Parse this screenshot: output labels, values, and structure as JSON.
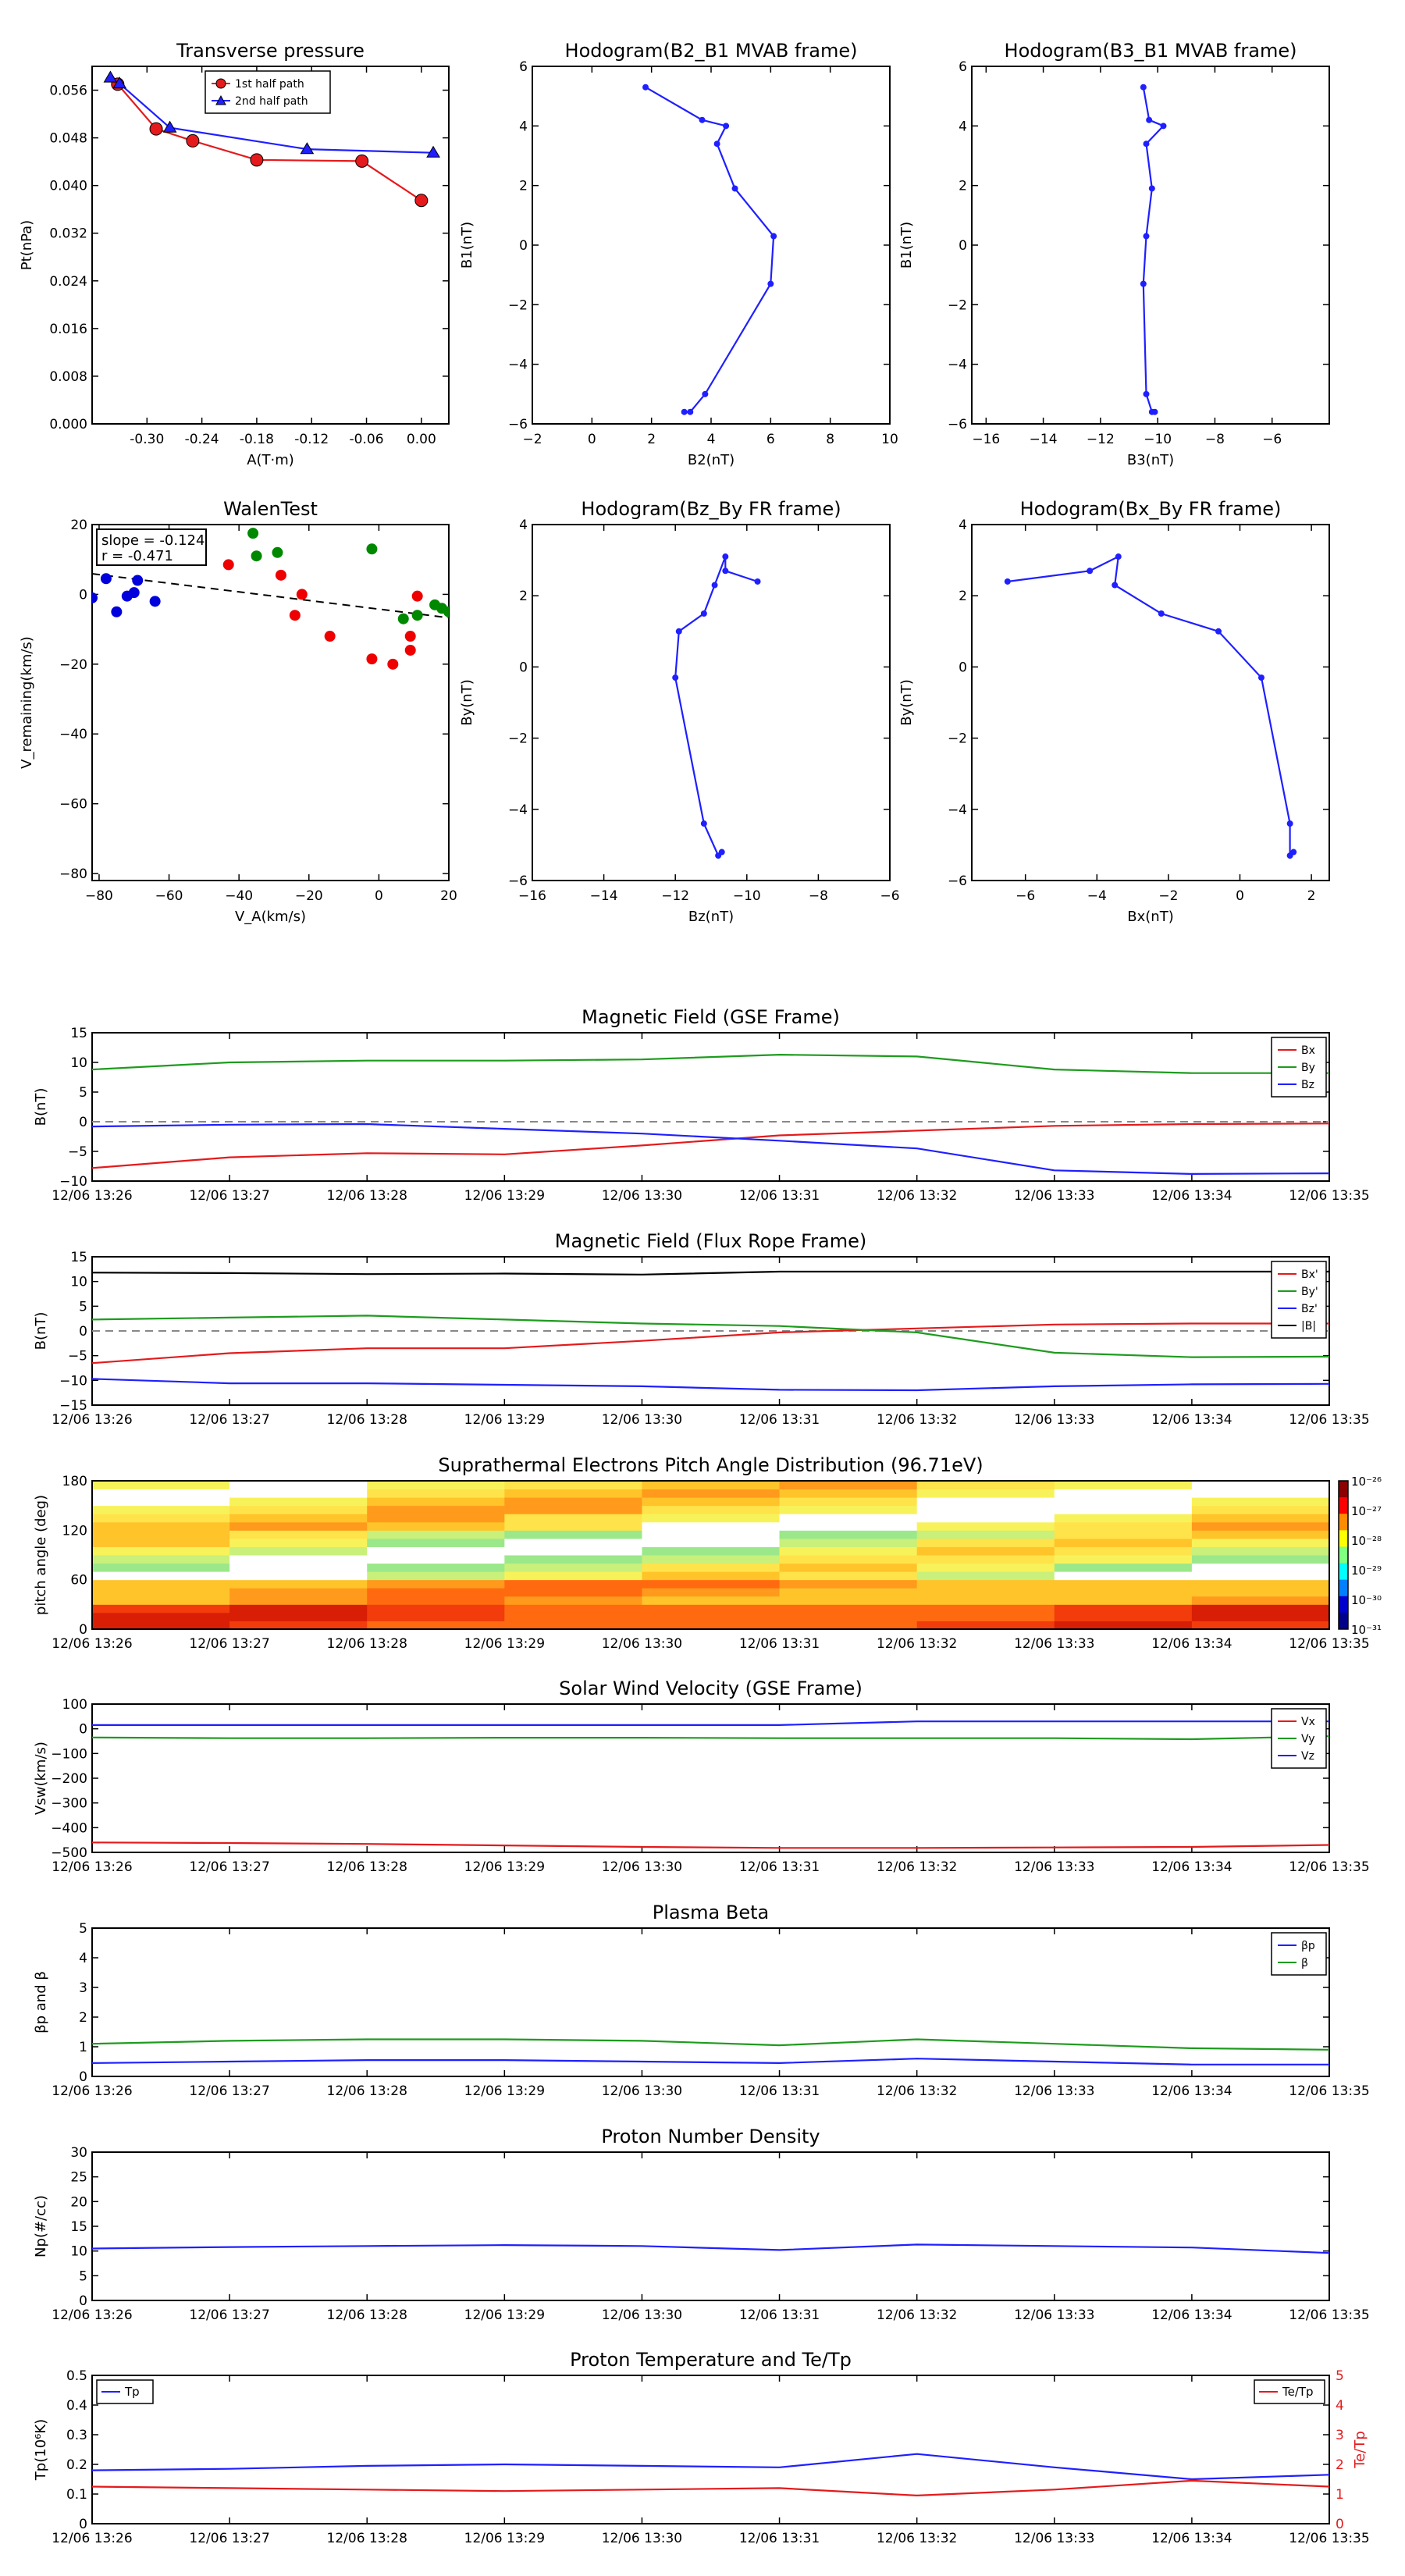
{
  "chart_data": [
    {
      "type": "line",
      "title": "Transverse pressure",
      "xlabel": "A(T·m)",
      "ylabel": "Pt(nPa)",
      "xlim": [
        -0.36,
        0.03
      ],
      "ylim": [
        0,
        0.06
      ],
      "xticks": [
        "-0.30",
        "-0.24",
        "-0.18",
        "-0.12",
        "-0.06",
        "0.00"
      ],
      "yticks": [
        "0.000",
        "0.008",
        "0.016",
        "0.024",
        "0.032",
        "0.040",
        "0.048",
        "0.056"
      ],
      "legend": "top-center",
      "series": [
        {
          "name": "1st half path",
          "color": "#e41a1c",
          "marker": "circle",
          "x": [
            -0.332,
            -0.29,
            -0.25,
            -0.18,
            -0.065,
            0.0
          ],
          "y": [
            0.057,
            0.0495,
            0.0475,
            0.0443,
            0.0441,
            0.0375
          ]
        },
        {
          "name": "2nd half path",
          "color": "#1f1fff",
          "marker": "triangle",
          "x": [
            -0.34,
            -0.33,
            -0.275,
            -0.125,
            0.013
          ],
          "y": [
            0.0581,
            0.0571,
            0.0497,
            0.0461,
            0.0455
          ]
        }
      ]
    },
    {
      "type": "line",
      "title": "Hodogram(B2_B1 MVAB frame)",
      "xlabel": "B2(nT)",
      "ylabel": "B1(nT)",
      "xlim": [
        -2,
        10
      ],
      "ylim": [
        -6,
        6
      ],
      "xticks": [
        "−2",
        "0",
        "2",
        "4",
        "6",
        "8",
        "10"
      ],
      "yticks": [
        "−6",
        "−4",
        "−2",
        "0",
        "2",
        "4",
        "6"
      ],
      "series": [
        {
          "color": "#1f1fff",
          "x": [
            1.8,
            3.7,
            4.5,
            4.2,
            4.8,
            6.1,
            6.0,
            3.8,
            3.3,
            3.1
          ],
          "y": [
            5.3,
            4.2,
            4.0,
            3.4,
            1.9,
            0.3,
            -1.3,
            -5.0,
            -5.6,
            -5.6
          ]
        }
      ]
    },
    {
      "type": "line",
      "title": "Hodogram(B3_B1 MVAB frame)",
      "xlabel": "B3(nT)",
      "ylabel": "B1(nT)",
      "xlim": [
        -16.5,
        -4
      ],
      "ylim": [
        -6,
        6
      ],
      "xticks": [
        "−16",
        "−14",
        "−12",
        "−10",
        "−8",
        "−6"
      ],
      "yticks": [
        "−6",
        "−4",
        "−2",
        "0",
        "2",
        "4",
        "6"
      ],
      "series": [
        {
          "color": "#1f1fff",
          "x": [
            -10.5,
            -10.3,
            -9.8,
            -10.4,
            -10.2,
            -10.4,
            -10.5,
            -10.4,
            -10.2,
            -10.1
          ],
          "y": [
            5.3,
            4.2,
            4.0,
            3.4,
            1.9,
            0.3,
            -1.3,
            -5.0,
            -5.6,
            -5.6
          ]
        }
      ]
    },
    {
      "type": "scatter",
      "title": "WalenTest",
      "xlabel": "V_A(km/s)",
      "ylabel": "V_remaining(km/s)",
      "xlim": [
        -82,
        20
      ],
      "ylim": [
        -82,
        20
      ],
      "xticks": [
        "−80",
        "−60",
        "−40",
        "−20",
        "0",
        "20"
      ],
      "yticks": [
        "−80",
        "−60",
        "−40",
        "−20",
        "0",
        "20"
      ],
      "annotation": [
        "slope = -0.124",
        "r = -0.471"
      ],
      "fit_line": {
        "x": [
          -82,
          20
        ],
        "y": [
          5.9,
          -6.7
        ]
      },
      "series": [
        {
          "color": "#0000dd",
          "x": [
            -78,
            -75,
            -72,
            -70,
            -69,
            -64,
            -82
          ],
          "y": [
            4.5,
            -5,
            -0.5,
            0.5,
            4,
            -2,
            -1
          ]
        },
        {
          "color": "#ee0000",
          "x": [
            -43,
            -28,
            -24,
            -22,
            -14,
            -2,
            4,
            9,
            9,
            11
          ],
          "y": [
            8.5,
            5.5,
            -6,
            0,
            -12,
            -18.5,
            -20,
            -12,
            -16,
            -0.5
          ]
        },
        {
          "color": "#008800",
          "x": [
            -36,
            -35,
            -29,
            -2,
            7,
            11,
            16,
            18,
            20
          ],
          "y": [
            17.5,
            11,
            12,
            13,
            -7,
            -6,
            -3,
            -4,
            -5
          ]
        }
      ]
    },
    {
      "type": "line",
      "title": "Hodogram(Bz_By FR frame)",
      "xlabel": "Bz(nT)",
      "ylabel": "By(nT)",
      "xlim": [
        -16,
        -6
      ],
      "ylim": [
        -6,
        4
      ],
      "xticks": [
        "−16",
        "−14",
        "−12",
        "−10",
        "−8",
        "−6"
      ],
      "yticks": [
        "−6",
        "−4",
        "−2",
        "0",
        "2",
        "4"
      ],
      "series": [
        {
          "color": "#1f1fff",
          "x": [
            -9.7,
            -10.6,
            -10.6,
            -10.9,
            -11.2,
            -11.9,
            -12.0,
            -11.2,
            -10.8,
            -10.7
          ],
          "y": [
            2.4,
            2.7,
            3.1,
            2.3,
            1.5,
            1.0,
            -0.3,
            -4.4,
            -5.3,
            -5.2
          ]
        }
      ]
    },
    {
      "type": "line",
      "title": "Hodogram(Bx_By FR frame)",
      "xlabel": "Bx(nT)",
      "ylabel": "By(nT)",
      "xlim": [
        -7.5,
        2.5
      ],
      "ylim": [
        -6,
        4
      ],
      "xticks": [
        "−6",
        "−4",
        "−2",
        "0",
        "2"
      ],
      "yticks": [
        "−6",
        "−4",
        "−2",
        "0",
        "2",
        "4"
      ],
      "series": [
        {
          "color": "#1f1fff",
          "x": [
            -6.5,
            -4.2,
            -3.4,
            -3.5,
            -2.2,
            -0.6,
            0.6,
            1.4,
            1.4,
            1.5
          ],
          "y": [
            2.4,
            2.7,
            3.1,
            2.3,
            1.5,
            1.0,
            -0.3,
            -4.4,
            -5.3,
            -5.2
          ]
        }
      ]
    },
    {
      "type": "line",
      "title": "Magnetic Field (GSE Frame)",
      "ylabel": "B(nT)",
      "ylim": [
        -10,
        15
      ],
      "x": [
        "12/06 13:26",
        "12/06 13:27",
        "12/06 13:28",
        "12/06 13:29",
        "12/06 13:30",
        "12/06 13:31",
        "12/06 13:32",
        "12/06 13:33",
        "12/06 13:34",
        "12/06 13:35"
      ],
      "yticks": [
        "−10",
        "−5",
        "0",
        "5",
        "10",
        "15"
      ],
      "zero_line": true,
      "legend": "top-right",
      "series": [
        {
          "name": "Bx",
          "color": "#e41a1c",
          "values": [
            -7.8,
            -6.0,
            -5.3,
            -5.5,
            -4.0,
            -2.3,
            -1.5,
            -0.7,
            -0.4,
            -0.3
          ]
        },
        {
          "name": "By",
          "color": "#1e9b1e",
          "values": [
            8.8,
            10.0,
            10.3,
            10.3,
            10.5,
            11.3,
            11.0,
            8.8,
            8.2,
            8.2
          ]
        },
        {
          "name": "Bz",
          "color": "#1f1fff",
          "values": [
            -0.8,
            -0.5,
            -0.4,
            -1.2,
            -2.0,
            -3.2,
            -4.5,
            -8.2,
            -8.8,
            -8.7
          ]
        }
      ]
    },
    {
      "type": "line",
      "title": "Magnetic Field (Flux Rope Frame)",
      "ylabel": "B(nT)",
      "ylim": [
        -15,
        15
      ],
      "x": [
        "12/06 13:26",
        "12/06 13:27",
        "12/06 13:28",
        "12/06 13:29",
        "12/06 13:30",
        "12/06 13:31",
        "12/06 13:32",
        "12/06 13:33",
        "12/06 13:34",
        "12/06 13:35"
      ],
      "yticks": [
        "−15",
        "−10",
        "−5",
        "0",
        "5",
        "10",
        "15"
      ],
      "zero_line": true,
      "legend": "top-right",
      "series": [
        {
          "name": "Bx'",
          "color": "#e41a1c",
          "values": [
            -6.5,
            -4.5,
            -3.5,
            -3.5,
            -2.0,
            -0.3,
            0.5,
            1.3,
            1.5,
            1.5
          ]
        },
        {
          "name": "By'",
          "color": "#1e9b1e",
          "values": [
            2.3,
            2.7,
            3.1,
            2.3,
            1.5,
            1.0,
            -0.3,
            -4.4,
            -5.3,
            -5.2
          ]
        },
        {
          "name": "Bz'",
          "color": "#1f1fff",
          "values": [
            -9.7,
            -10.6,
            -10.6,
            -10.9,
            -11.2,
            -11.9,
            -12.0,
            -11.2,
            -10.8,
            -10.7
          ]
        },
        {
          "name": "|B|",
          "color": "#000000",
          "values": [
            11.8,
            11.7,
            11.5,
            11.6,
            11.4,
            12.0,
            12.0,
            12.0,
            12.0,
            12.0
          ]
        }
      ]
    },
    {
      "type": "heatmap",
      "title": "Suprathermal Electrons Pitch Angle Distribution (96.71eV)",
      "ylabel": "pitch angle (deg)",
      "ylim": [
        0,
        180
      ],
      "x": [
        "12/06 13:26",
        "12/06 13:27",
        "12/06 13:28",
        "12/06 13:29",
        "12/06 13:30",
        "12/06 13:31",
        "12/06 13:32",
        "12/06 13:33",
        "12/06 13:34",
        "12/06 13:35"
      ],
      "yticks": [
        "0",
        "60",
        "120",
        "180"
      ],
      "colorbar_ticks": [
        "10⁻²⁶",
        "10⁻²⁷",
        "10⁻²⁸",
        "10⁻²⁹",
        "10⁻³⁰",
        "10⁻³¹"
      ],
      "columns": 9,
      "rows": 18
    },
    {
      "type": "line",
      "title": "Solar Wind Velocity (GSE Frame)",
      "ylabel": "Vsw(km/s)",
      "ylim": [
        -500,
        100
      ],
      "x": [
        "12/06 13:26",
        "12/06 13:27",
        "12/06 13:28",
        "12/06 13:29",
        "12/06 13:30",
        "12/06 13:31",
        "12/06 13:32",
        "12/06 13:33",
        "12/06 13:34",
        "12/06 13:35"
      ],
      "yticks": [
        "−500",
        "−400",
        "−300",
        "−200",
        "−100",
        "0",
        "100"
      ],
      "legend": "top-right",
      "series": [
        {
          "name": "Vx",
          "color": "#e41a1c",
          "values": [
            -460,
            -462,
            -466,
            -472,
            -478,
            -482,
            -482,
            -480,
            -478,
            -470
          ]
        },
        {
          "name": "Vy",
          "color": "#1e9b1e",
          "values": [
            -35,
            -38,
            -38,
            -36,
            -36,
            -38,
            -38,
            -38,
            -42,
            -30
          ]
        },
        {
          "name": "Vz",
          "color": "#1f1fff",
          "values": [
            15,
            15,
            15,
            15,
            15,
            15,
            30,
            30,
            30,
            30
          ]
        }
      ]
    },
    {
      "type": "line",
      "title": "Plasma Beta",
      "ylabel": "βp and β",
      "ylim": [
        0,
        5
      ],
      "x": [
        "12/06 13:26",
        "12/06 13:27",
        "12/06 13:28",
        "12/06 13:29",
        "12/06 13:30",
        "12/06 13:31",
        "12/06 13:32",
        "12/06 13:33",
        "12/06 13:34",
        "12/06 13:35"
      ],
      "yticks": [
        "0",
        "1",
        "2",
        "3",
        "4",
        "5"
      ],
      "legend": "top-right",
      "series": [
        {
          "name": "βp",
          "color": "#1f1fff",
          "values": [
            0.45,
            0.5,
            0.55,
            0.55,
            0.5,
            0.45,
            0.6,
            0.5,
            0.4,
            0.4
          ]
        },
        {
          "name": "β",
          "color": "#1e9b1e",
          "values": [
            1.1,
            1.2,
            1.25,
            1.25,
            1.2,
            1.05,
            1.25,
            1.1,
            0.95,
            0.9
          ]
        }
      ]
    },
    {
      "type": "line",
      "title": "Proton Number Density",
      "ylabel": "Np(#/cc)",
      "ylim": [
        0,
        30
      ],
      "x": [
        "12/06 13:26",
        "12/06 13:27",
        "12/06 13:28",
        "12/06 13:29",
        "12/06 13:30",
        "12/06 13:31",
        "12/06 13:32",
        "12/06 13:33",
        "12/06 13:34",
        "12/06 13:35"
      ],
      "yticks": [
        "0",
        "5",
        "10",
        "15",
        "20",
        "25",
        "30"
      ],
      "series": [
        {
          "color": "#1f1fff",
          "values": [
            10.5,
            10.8,
            11.0,
            11.2,
            11.0,
            10.2,
            11.3,
            11.0,
            10.7,
            9.6
          ]
        }
      ]
    },
    {
      "type": "line",
      "title": "Proton Temperature and Te/Tp",
      "ylabel": "Tp(10⁶K)",
      "ylabel_right": "Te/Tp",
      "ylim": [
        0,
        0.5
      ],
      "ylim_right": [
        0,
        5
      ],
      "x": [
        "12/06 13:26",
        "12/06 13:27",
        "12/06 13:28",
        "12/06 13:29",
        "12/06 13:30",
        "12/06 13:31",
        "12/06 13:32",
        "12/06 13:33",
        "12/06 13:34",
        "12/06 13:35"
      ],
      "yticks": [
        "0",
        "0.1",
        "0.2",
        "0.3",
        "0.4",
        "0.5"
      ],
      "yticks_right": [
        "0",
        "1",
        "2",
        "3",
        "4",
        "5"
      ],
      "series": [
        {
          "name": "Tp",
          "color": "#1f1fff",
          "axis": "left",
          "values": [
            0.18,
            0.185,
            0.195,
            0.2,
            0.195,
            0.19,
            0.235,
            0.19,
            0.15,
            0.165
          ]
        },
        {
          "name": "Te/Tp",
          "color": "#e41a1c",
          "axis": "right",
          "values": [
            1.25,
            1.2,
            1.15,
            1.1,
            1.15,
            1.2,
            0.95,
            1.15,
            1.45,
            1.25
          ]
        }
      ]
    }
  ]
}
